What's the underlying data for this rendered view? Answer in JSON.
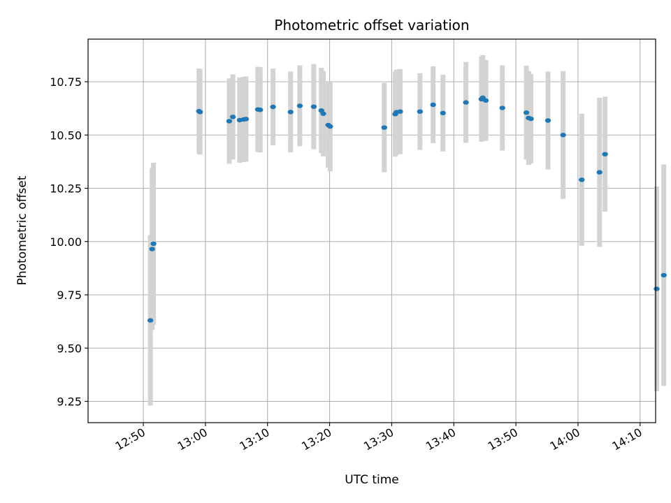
{
  "chart_data": {
    "type": "scatter",
    "title": "Photometric offset variation",
    "xlabel": "UTC time",
    "ylabel": "Photometric offset",
    "x_ticks": [
      "12:50",
      "13:00",
      "13:10",
      "13:20",
      "13:30",
      "13:40",
      "13:50",
      "14:00",
      "14:10"
    ],
    "y_ticks": [
      "9.25",
      "9.50",
      "9.75",
      "10.00",
      "10.25",
      "10.50",
      "10.75"
    ],
    "xlim": [
      "12:41:06",
      "14:12:30"
    ],
    "ylim": [
      9.15,
      10.95
    ],
    "grid": true,
    "legend": "none",
    "colors": {
      "point": "#1f77b4",
      "errorbar": "#d3d3d3",
      "grid": "#b0b0b0"
    },
    "series": [
      {
        "points": [
          {
            "x": "12:51:08",
            "y": 9.63,
            "err": 0.4
          },
          {
            "x": "12:51:25",
            "y": 9.965,
            "err": 0.38
          },
          {
            "x": "12:51:38",
            "y": 9.99,
            "err": 0.38
          },
          {
            "x": "12:58:58",
            "y": 10.612,
            "err": 0.2
          },
          {
            "x": "12:59:08",
            "y": 10.608,
            "err": 0.2
          },
          {
            "x": "13:03:50",
            "y": 10.565,
            "err": 0.2
          },
          {
            "x": "13:04:25",
            "y": 10.585,
            "err": 0.2
          },
          {
            "x": "13:05:31",
            "y": 10.57,
            "err": 0.2
          },
          {
            "x": "13:06:09",
            "y": 10.573,
            "err": 0.2
          },
          {
            "x": "13:06:32",
            "y": 10.575,
            "err": 0.2
          },
          {
            "x": "13:08:27",
            "y": 10.62,
            "err": 0.2
          },
          {
            "x": "13:08:49",
            "y": 10.618,
            "err": 0.2
          },
          {
            "x": "13:10:53",
            "y": 10.632,
            "err": 0.18
          },
          {
            "x": "13:13:43",
            "y": 10.608,
            "err": 0.19
          },
          {
            "x": "13:15:12",
            "y": 10.637,
            "err": 0.19
          },
          {
            "x": "13:17:27",
            "y": 10.633,
            "err": 0.2
          },
          {
            "x": "13:18:40",
            "y": 10.615,
            "err": 0.2
          },
          {
            "x": "13:18:59",
            "y": 10.6,
            "err": 0.2
          },
          {
            "x": "13:19:47",
            "y": 10.547,
            "err": 0.2
          },
          {
            "x": "13:20:05",
            "y": 10.54,
            "err": 0.21
          },
          {
            "x": "13:28:48",
            "y": 10.535,
            "err": 0.21
          },
          {
            "x": "13:30:34",
            "y": 10.598,
            "err": 0.2
          },
          {
            "x": "13:30:46",
            "y": 10.607,
            "err": 0.2
          },
          {
            "x": "13:31:21",
            "y": 10.61,
            "err": 0.2
          },
          {
            "x": "13:34:33",
            "y": 10.61,
            "err": 0.18
          },
          {
            "x": "13:36:40",
            "y": 10.642,
            "err": 0.18
          },
          {
            "x": "13:38:15",
            "y": 10.603,
            "err": 0.18
          },
          {
            "x": "13:41:57",
            "y": 10.653,
            "err": 0.19
          },
          {
            "x": "13:44:27",
            "y": 10.668,
            "err": 0.2
          },
          {
            "x": "13:44:40",
            "y": 10.675,
            "err": 0.2
          },
          {
            "x": "13:45:09",
            "y": 10.662,
            "err": 0.19
          },
          {
            "x": "13:47:49",
            "y": 10.627,
            "err": 0.2
          },
          {
            "x": "13:51:41",
            "y": 10.605,
            "err": 0.22
          },
          {
            "x": "13:52:03",
            "y": 10.58,
            "err": 0.22
          },
          {
            "x": "13:52:25",
            "y": 10.576,
            "err": 0.21
          },
          {
            "x": "13:55:10",
            "y": 10.568,
            "err": 0.23
          },
          {
            "x": "13:57:36",
            "y": 10.5,
            "err": 0.3
          },
          {
            "x": "14:00:36",
            "y": 10.29,
            "err": 0.31
          },
          {
            "x": "14:03:28",
            "y": 10.325,
            "err": 0.35
          },
          {
            "x": "14:04:21",
            "y": 10.41,
            "err": 0.27
          },
          {
            "x": "14:12:40",
            "y": 9.778,
            "err": 0.48
          },
          {
            "x": "14:13:49",
            "y": 9.842,
            "err": 0.52
          }
        ]
      }
    ]
  }
}
